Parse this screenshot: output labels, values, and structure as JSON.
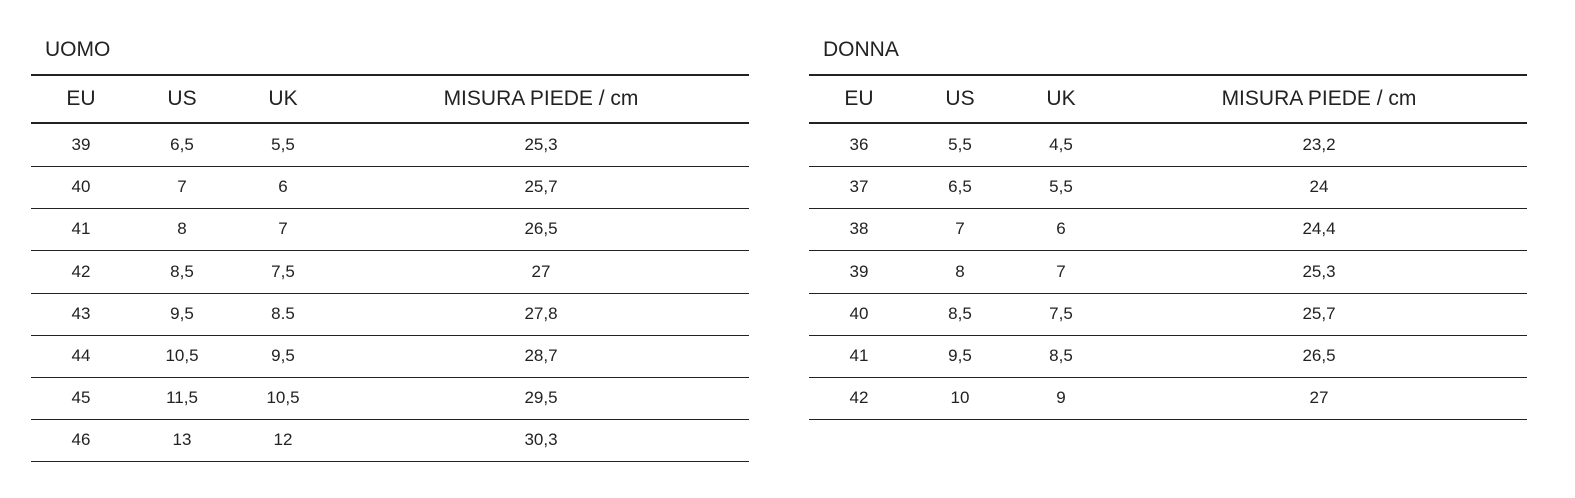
{
  "tables": [
    {
      "title": "UOMO",
      "headers": [
        "EU",
        "US",
        "UK",
        "MISURA PIEDE / cm"
      ],
      "rows": [
        [
          "39",
          "6,5",
          "5,5",
          "25,3"
        ],
        [
          "40",
          "7",
          "6",
          "25,7"
        ],
        [
          "41",
          "8",
          "7",
          "26,5"
        ],
        [
          "42",
          "8,5",
          "7,5",
          "27"
        ],
        [
          "43",
          "9,5",
          "8.5",
          "27,8"
        ],
        [
          "44",
          "10,5",
          "9,5",
          "28,7"
        ],
        [
          "45",
          "11,5",
          "10,5",
          "29,5"
        ],
        [
          "46",
          "13",
          "12",
          "30,3"
        ]
      ]
    },
    {
      "title": "DONNA",
      "headers": [
        "EU",
        "US",
        "UK",
        "MISURA PIEDE / cm"
      ],
      "rows": [
        [
          "36",
          "5,5",
          "4,5",
          "23,2"
        ],
        [
          "37",
          "6,5",
          "5,5",
          "24"
        ],
        [
          "38",
          "7",
          "6",
          "24,4"
        ],
        [
          "39",
          "8",
          "7",
          "25,3"
        ],
        [
          "40",
          "8,5",
          "7,5",
          "25,7"
        ],
        [
          "41",
          "9,5",
          "8,5",
          "26,5"
        ],
        [
          "42",
          "10",
          "9",
          "27"
        ]
      ]
    }
  ]
}
